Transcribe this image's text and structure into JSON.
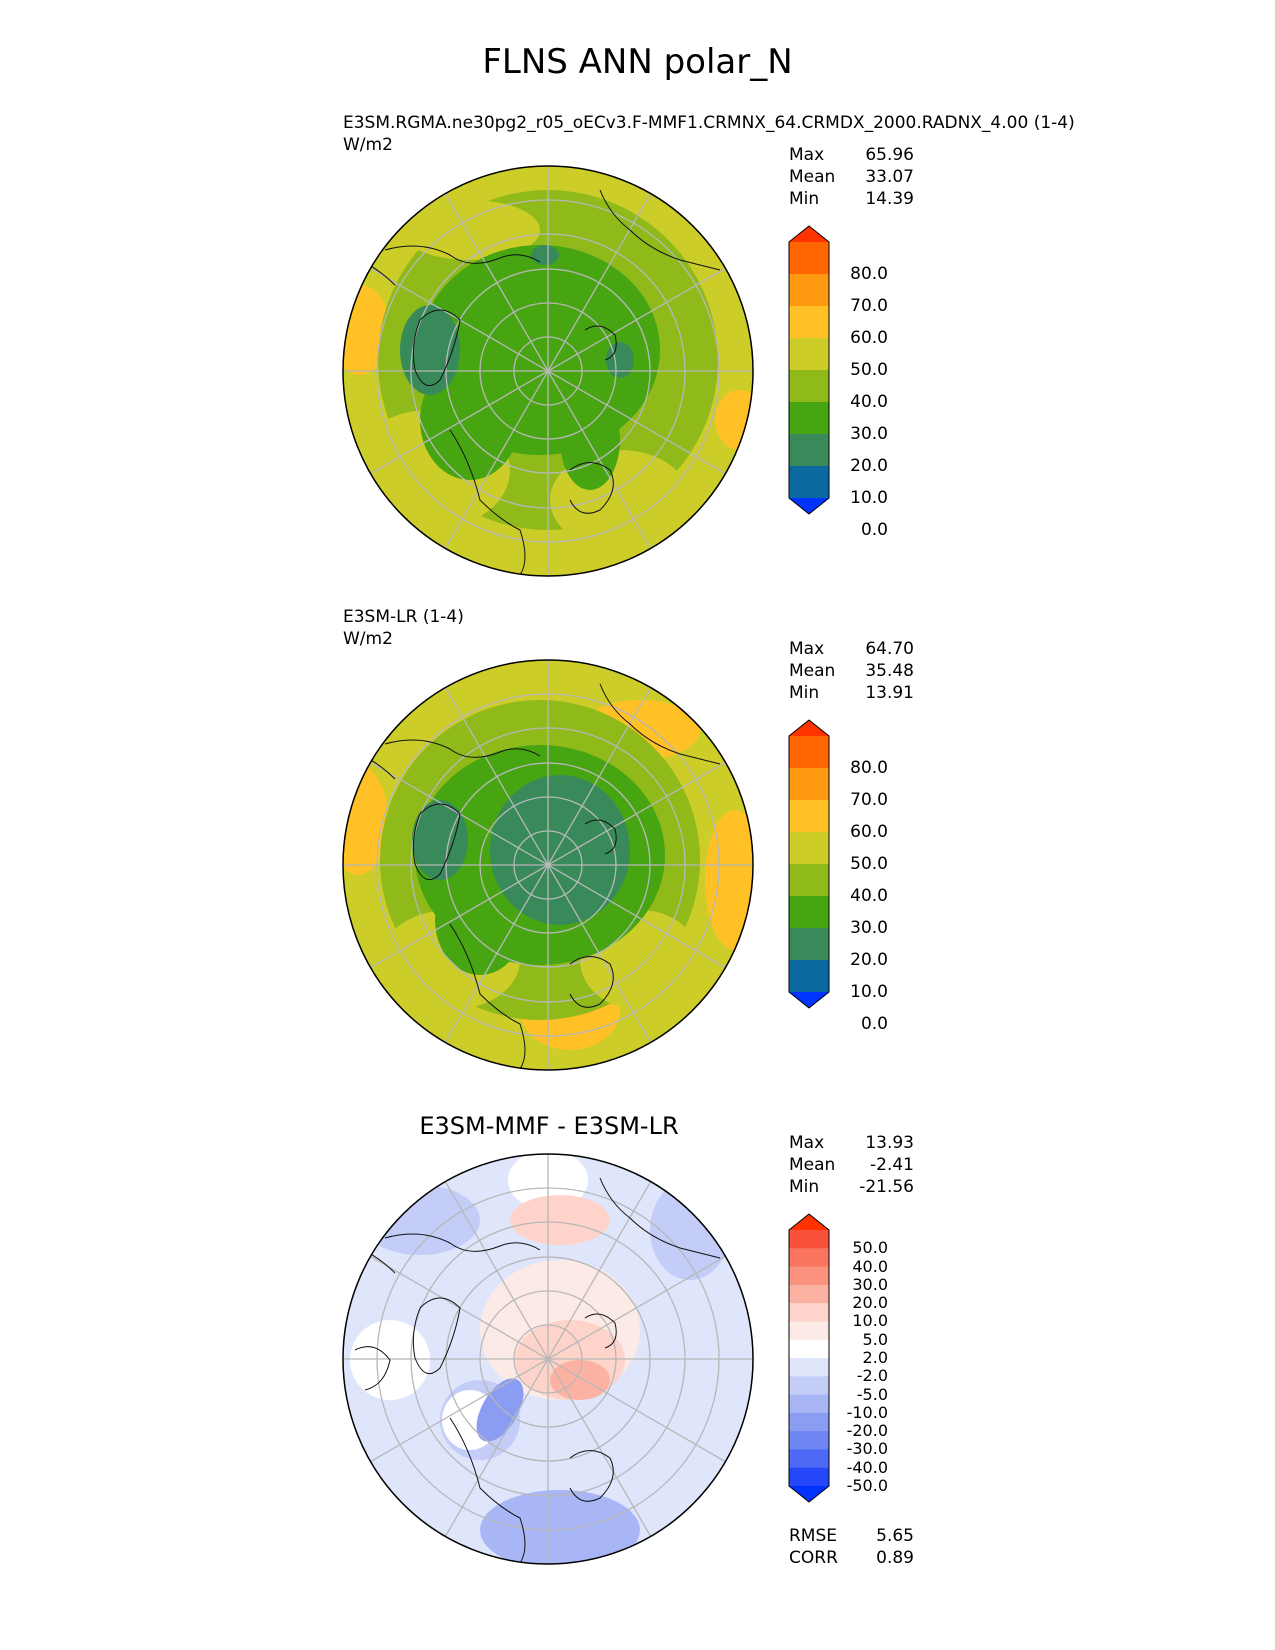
{
  "figure": {
    "title": "FLNS ANN polar_N"
  },
  "panels": [
    {
      "name": "E3SM.RGMA.ne30pg2_r05_oECv3.F-MMF1.CRMNX_64.CRMDX_2000.RADNX_4.00 (1-4)",
      "units": "W/m2",
      "stats": {
        "max_label": "Max",
        "max": "65.96",
        "mean_label": "Mean",
        "mean": "33.07",
        "min_label": "Min",
        "min": "14.39"
      }
    },
    {
      "name": "E3SM-LR (1-4)",
      "units": "W/m2",
      "stats": {
        "max_label": "Max",
        "max": "64.70",
        "mean_label": "Mean",
        "mean": "35.48",
        "min_label": "Min",
        "min": "13.91"
      }
    },
    {
      "name": "E3SM-MMF - E3SM-LR",
      "stats": {
        "max_label": "Max",
        "max": "13.93",
        "mean_label": "Mean",
        "mean": "-2.41",
        "min_label": "Min",
        "min": "-21.56"
      },
      "metrics": {
        "rmse_label": "RMSE",
        "rmse": "5.65",
        "corr_label": "CORR",
        "corr": "0.89"
      }
    }
  ],
  "colorbars": {
    "model": {
      "ticks": [
        "80.0",
        "70.0",
        "60.0",
        "50.0",
        "40.0",
        "30.0",
        "20.0",
        "10.0",
        "0.0"
      ],
      "colors_top_to_bottom": [
        "#ff3300",
        "#ff6600",
        "#ff9911",
        "#ffc125",
        "#cdcd2a",
        "#8fba1a",
        "#48a512",
        "#388a5a",
        "#0a6aa0",
        "#0033ff"
      ]
    },
    "diff": {
      "ticks": [
        "50.0",
        "40.0",
        "30.0",
        "20.0",
        "10.0",
        "5.0",
        "2.0",
        "-2.0",
        "-5.0",
        "-10.0",
        "-20.0",
        "-30.0",
        "-40.0",
        "-50.0"
      ],
      "colors_top_to_bottom": [
        "#ff3300",
        "#f8523a",
        "#f9755e",
        "#fa927e",
        "#fbb2a3",
        "#fdd3ca",
        "#fbeae5",
        "#ffffff",
        "#dfe5fb",
        "#c3cdf8",
        "#a8b6f5",
        "#8b9df3",
        "#6e85f2",
        "#4d69f5",
        "#2347f9",
        "#0033ff"
      ]
    }
  },
  "map_palette": {
    "grid": "#b8b8b8",
    "coast": "#111111"
  }
}
